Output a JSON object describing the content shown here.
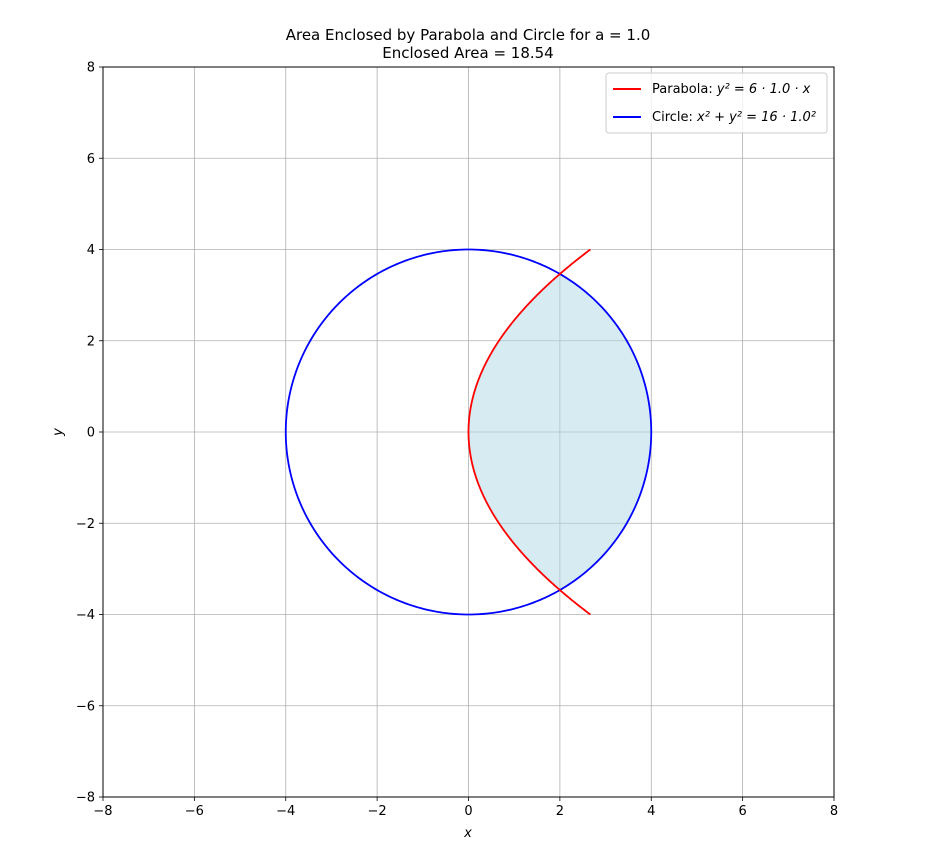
{
  "chart_data": {
    "type": "line",
    "title": "Area Enclosed by Parabola and Circle for a = 1.0",
    "subtitle": "Enclosed Area = 18.54",
    "xlabel": "x",
    "ylabel": "y",
    "xlim": [
      -8,
      8
    ],
    "ylim": [
      -8,
      8
    ],
    "xticks": [
      -8,
      -6,
      -4,
      -2,
      0,
      2,
      4,
      6,
      8
    ],
    "yticks": [
      -8,
      -6,
      -4,
      -2,
      0,
      2,
      4,
      6,
      8
    ],
    "xtick_labels": [
      "−8",
      "−6",
      "−4",
      "−2",
      "0",
      "2",
      "4",
      "6",
      "8"
    ],
    "ytick_labels": [
      "−8",
      "−6",
      "−4",
      "−2",
      "0",
      "2",
      "4",
      "6",
      "8"
    ],
    "grid": true,
    "legend_position": "top-right",
    "a": 1.0,
    "series": [
      {
        "name": "Parabola",
        "legend_prefix": "Parabola: ",
        "legend_math": "y² = 6 · 1.0 · x",
        "curve": "parabola",
        "equation": "y^2 = 6ax",
        "y_range": [
          -4,
          4
        ],
        "color": "#ff0000"
      },
      {
        "name": "Circle",
        "legend_prefix": "Circle: ",
        "legend_math": "x² + y² = 16 · 1.0²",
        "curve": "circle",
        "equation": "x^2 + y^2 = 16a^2",
        "radius": 4,
        "color": "#0000ff"
      }
    ],
    "shaded_region": {
      "description_of_bounds": "between parabola (left) and circle (right)",
      "y_intersections": [
        -3.4641,
        3.4641
      ],
      "color": "#add8e6",
      "opacity": 0.5
    }
  }
}
